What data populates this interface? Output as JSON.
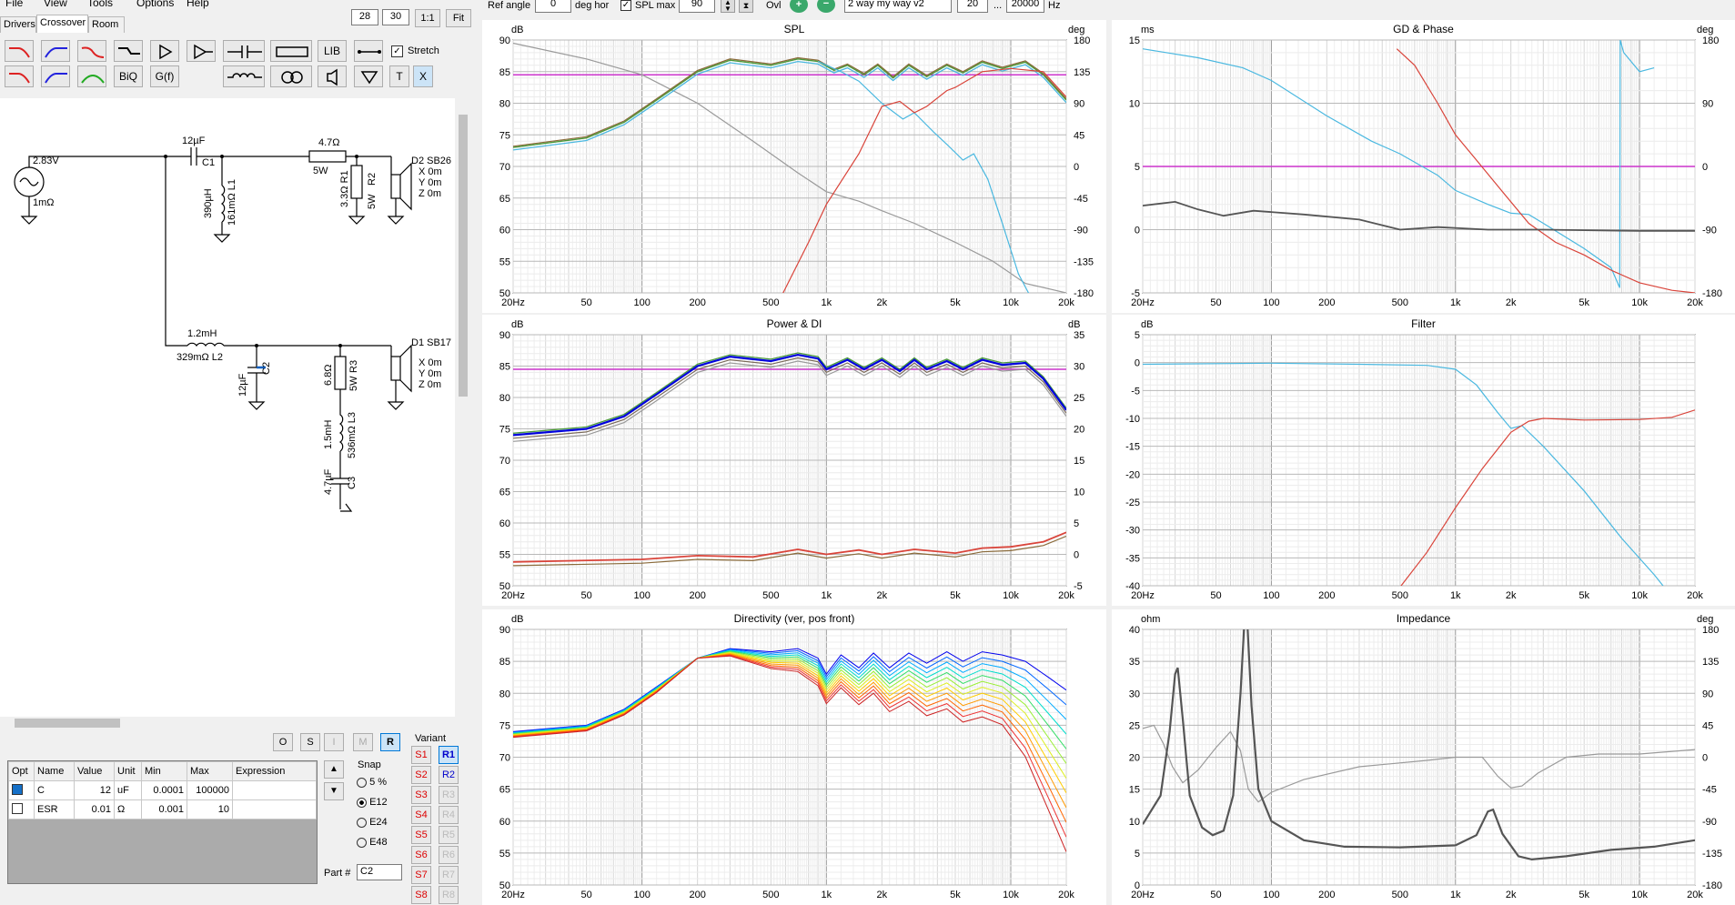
{
  "menu": [
    "File",
    "View",
    "Tools",
    "Options",
    "Help"
  ],
  "tabs": [
    "Drivers",
    "Crossover",
    "Room"
  ],
  "active_tab": "Crossover",
  "zoom": {
    "a": "28",
    "b": "30",
    "one": "1:1",
    "fit": "Fit"
  },
  "toolbar": {
    "lib": "LIB",
    "biq": "BiQ",
    "gf": "G(f)",
    "stretch": "Stretch",
    "t": "T",
    "x": "X"
  },
  "topbar": {
    "ref_angle_label": "Ref angle",
    "ref_angle_value": "0",
    "deg_hor": "deg hor",
    "spl_max_label": "SPL max",
    "spl_max_value": "90",
    "ovl": "Ovl",
    "project": "2 way my way v2",
    "f_min": "20",
    "dots": "...",
    "f_max": "20000",
    "hz": "Hz"
  },
  "schematic": {
    "source_v": "2.83V",
    "source_r": "1mΩ",
    "c1_val": "12µF",
    "c1": "C1",
    "l1_val": "390µH",
    "l1_r": "161mΩ L1",
    "r_top_val": "4.7Ω",
    "r_top_w": "5W",
    "r1": "3.3Ω R1",
    "r2": "R2",
    "r2_w": "5W",
    "d2": "D2 SB26",
    "d2_x": "X 0m",
    "d2_y": "Y 0m",
    "d2_z": "Z 0m",
    "l2_val": "1.2mH",
    "l2_r": "329mΩ L2",
    "c2_val": "12µF",
    "c2": "C2",
    "r3_val": "6.8Ω",
    "r3": "R3",
    "r3_w": "5W",
    "l3_val": "1.5mH",
    "l3_r": "536mΩ L3",
    "c3_val": "4.7µF",
    "c3": "C3",
    "d1": "D1 SB17",
    "d1_x": "X 0m",
    "d1_y": "Y 0m",
    "d1_z": "Z 0m"
  },
  "opt_buttons": [
    "O",
    "S",
    "I",
    "M",
    "R"
  ],
  "table": {
    "headers": [
      "Opt",
      "Name",
      "Value",
      "Unit",
      "Min",
      "Max",
      "Expression"
    ],
    "rows": [
      {
        "name": "C",
        "value": "12",
        "unit": "uF",
        "min": "0.0001",
        "max": "100000",
        "expr": ""
      },
      {
        "name": "ESR",
        "value": "0.01",
        "unit": "Ω",
        "min": "0.001",
        "max": "10",
        "expr": ""
      }
    ]
  },
  "snap": {
    "label": "Snap",
    "options": [
      "5 %",
      "E12",
      "E24",
      "E48"
    ],
    "selected": "E12"
  },
  "part": {
    "label": "Part #",
    "value": "C2"
  },
  "variant": {
    "label": "Variant",
    "s": [
      "S1",
      "S2",
      "S3",
      "S4",
      "S5",
      "S6",
      "S7",
      "S8"
    ],
    "r": [
      "R1",
      "R2",
      "R3",
      "R4",
      "R5",
      "R6",
      "R7",
      "R8"
    ]
  },
  "graphs": {
    "spl": {
      "title": "SPL",
      "yl": "dB",
      "yr": "deg",
      "left": [
        "90",
        "85",
        "80",
        "75",
        "70",
        "65",
        "60",
        "55",
        "50"
      ],
      "right": [
        "180",
        "135",
        "90",
        "45",
        "0",
        "-45",
        "-90",
        "-135",
        "-180"
      ]
    },
    "gd": {
      "title": "GD & Phase",
      "yl": "ms",
      "yr": "deg",
      "left": [
        "15",
        "10",
        "5",
        "0",
        "-5"
      ],
      "right": [
        "180",
        "90",
        "0",
        "-90",
        "-180"
      ]
    },
    "power": {
      "title": "Power & DI",
      "yl": "dB",
      "yr": "dB",
      "left": [
        "90",
        "85",
        "80",
        "75",
        "70",
        "65",
        "60",
        "55",
        "50"
      ],
      "right": [
        "35",
        "30",
        "25",
        "20",
        "15",
        "10",
        "5",
        "0",
        "-5"
      ]
    },
    "filter": {
      "title": "Filter",
      "yl": "dB",
      "yr": "",
      "left": [
        "5",
        "0",
        "-5",
        "-10",
        "-15",
        "-20",
        "-25",
        "-30",
        "-35",
        "-40"
      ],
      "right": []
    },
    "dir": {
      "title": "Directivity (ver, pos front)",
      "yl": "dB",
      "yr": "",
      "left": [
        "90",
        "85",
        "80",
        "75",
        "70",
        "65",
        "60",
        "55",
        "50"
      ],
      "right": []
    },
    "imp": {
      "title": "Impedance",
      "yl": "ohm",
      "yr": "deg",
      "left": [
        "40",
        "35",
        "30",
        "25",
        "20",
        "15",
        "10",
        "5",
        "0"
      ],
      "right": [
        "180",
        "135",
        "90",
        "45",
        "0",
        "-45",
        "-90",
        "-135",
        "-180"
      ]
    },
    "xticks": [
      "20Hz",
      "50",
      "100",
      "200",
      "500",
      "1k",
      "2k",
      "5k",
      "10k",
      "20k"
    ]
  },
  "colors": {
    "magenta": "#cc33cc",
    "cyan": "#4ab8e0",
    "red": "#d9443a",
    "gray": "#9a9a9a",
    "dark": "#555555",
    "green": "#4a9a3a",
    "blue": "#0000dd"
  }
}
